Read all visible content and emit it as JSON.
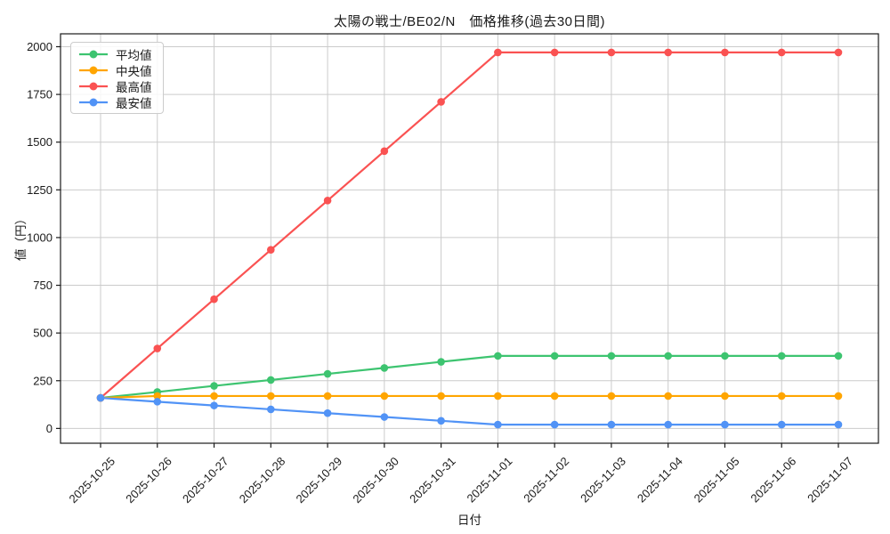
{
  "title": "太陽の戦士/BE02/N　価格推移(過去30日間)",
  "chart_data": {
    "type": "line",
    "title": "太陽の戦士/BE02/N　価格推移(過去30日間)",
    "xlabel": "日付",
    "ylabel": "値（円）",
    "x": [
      "2025-10-25",
      "2025-10-26",
      "2025-10-27",
      "2025-10-28",
      "2025-10-29",
      "2025-10-30",
      "2025-10-31",
      "2025-11-01",
      "2025-11-02",
      "2025-11-03",
      "2025-11-04",
      "2025-11-05",
      "2025-11-06",
      "2025-11-07"
    ],
    "series": [
      {
        "key": "average",
        "name": "平均値",
        "color": "#3dc470",
        "values": [
          160,
          191,
          223,
          254,
          286,
          317,
          349,
          380,
          380,
          380,
          380,
          380,
          380,
          380
        ]
      },
      {
        "key": "median",
        "name": "中央値",
        "color": "#ffa500",
        "values": [
          160,
          170,
          170,
          170,
          170,
          170,
          170,
          170,
          170,
          170,
          170,
          170,
          170,
          170
        ]
      },
      {
        "key": "max",
        "name": "最高値",
        "color": "#fa5252",
        "values": [
          160,
          419,
          677,
          936,
          1194,
          1453,
          1711,
          1970,
          1970,
          1970,
          1970,
          1970,
          1970,
          1970
        ]
      },
      {
        "key": "min",
        "name": "最安値",
        "color": "#5193f6",
        "values": [
          160,
          140,
          120,
          100,
          80,
          60,
          40,
          20,
          20,
          20,
          20,
          20,
          20,
          20
        ]
      }
    ],
    "yticks": [
      0,
      250,
      500,
      750,
      1000,
      1250,
      1500,
      1750,
      2000
    ],
    "ylim": [
      -77.5,
      2067.5
    ],
    "grid": true,
    "legend_position": "upper-left",
    "grid_color": "#cbcbcb",
    "spine_color": "#1a1a1a",
    "tick_label_color": "#1a1a1a"
  }
}
